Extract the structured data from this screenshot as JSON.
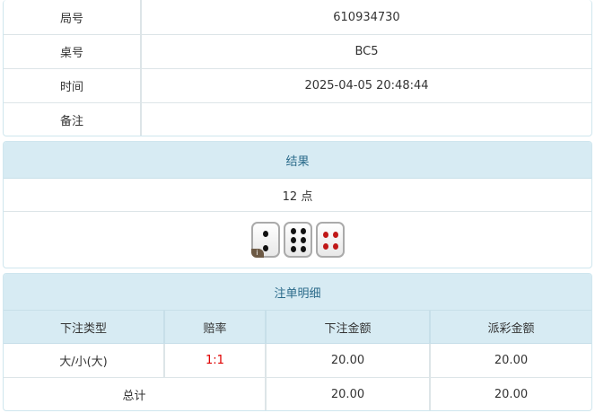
{
  "info": [
    {
      "label": "局号",
      "value": "610934730"
    },
    {
      "label": "桌号",
      "value": "BC5"
    },
    {
      "label": "时间",
      "value": "2025-04-05 20:48:44"
    },
    {
      "label": "备注",
      "value": ""
    }
  ],
  "result": {
    "title": "结果",
    "points": "12 点",
    "dice": [
      2,
      6,
      4
    ],
    "info_badge": "i"
  },
  "bets": {
    "title": "注单明细",
    "headers": [
      "下注类型",
      "赔率",
      "下注金额",
      "派彩金额"
    ],
    "rows": [
      {
        "type": "大/小(大)",
        "odds": "1:1",
        "amount": "20.00",
        "payout": "20.00"
      }
    ],
    "total": {
      "label": "总计",
      "amount": "20.00",
      "payout": "20.00"
    },
    "odds_color": "#e00000"
  }
}
